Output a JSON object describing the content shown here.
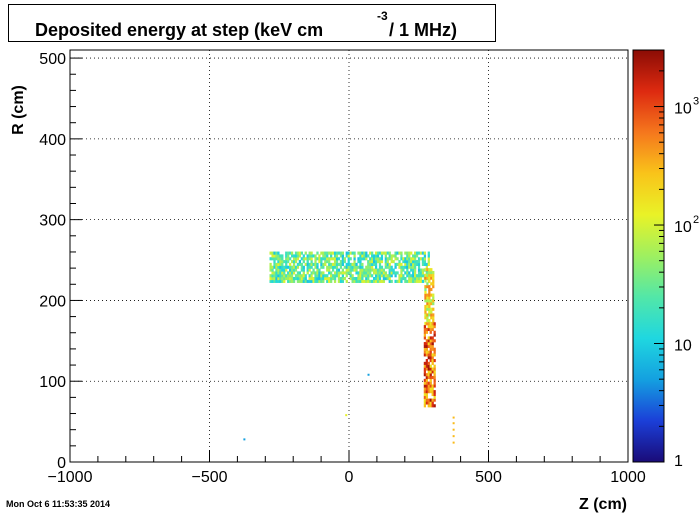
{
  "chart_data": {
    "type": "heatmap",
    "title": {
      "main": "Deposited energy at step (keV cm",
      "superscript": "-3",
      "tail": "/ 1 MHz)"
    },
    "xlabel": "Z (cm)",
    "ylabel": "R (cm)",
    "xlim": [
      -1000,
      1000
    ],
    "ylim": [
      0,
      510
    ],
    "x_ticks": [
      -1000,
      -500,
      0,
      500,
      1000
    ],
    "x_tick_labels": [
      "−1000",
      "−500",
      "0",
      "500",
      "1000"
    ],
    "y_ticks": [
      0,
      100,
      200,
      300,
      400,
      500
    ],
    "y_tick_labels": [
      "0",
      "100",
      "200",
      "300",
      "400",
      "500"
    ],
    "grid": true,
    "colorbar": {
      "scale": "log",
      "range": [
        1,
        3000
      ],
      "tick_labels": [
        {
          "base": "1",
          "exp": ""
        },
        {
          "base": "10",
          "exp": ""
        },
        {
          "base": "10",
          "exp": "2"
        },
        {
          "base": "10",
          "exp": "3"
        }
      ],
      "tick_values": [
        1,
        10,
        100,
        1000
      ],
      "colors": [
        "#1a0b78",
        "#1b3fd8",
        "#14a0e0",
        "#1fd7e0",
        "#52e7a8",
        "#9ef060",
        "#e9f227",
        "#f9c41a",
        "#f5771d",
        "#dd2a10",
        "#8b0c05"
      ]
    },
    "regions": [
      {
        "name": "horizontal band",
        "z": [
          -285,
          285
        ],
        "r": [
          222,
          258
        ],
        "level": [
          8,
          120
        ]
      },
      {
        "name": "vertical band upper",
        "z": [
          270,
          305
        ],
        "r": [
          170,
          240
        ],
        "level": [
          40,
          600
        ]
      },
      {
        "name": "vertical band lower",
        "z": [
          268,
          305
        ],
        "r": [
          68,
          170
        ],
        "level": [
          150,
          2500
        ]
      },
      {
        "name": "isolated points",
        "points": [
          [
            375,
            55,
            300
          ],
          [
            375,
            48,
            300
          ],
          [
            375,
            40,
            300
          ],
          [
            375,
            32,
            300
          ],
          [
            375,
            24,
            300
          ],
          [
            -10,
            58,
            120
          ],
          [
            -375,
            28,
            5
          ],
          [
            70,
            108,
            5
          ]
        ]
      }
    ]
  },
  "footer": {
    "timestamp": "Mon Oct  6 11:53:35 2014"
  }
}
